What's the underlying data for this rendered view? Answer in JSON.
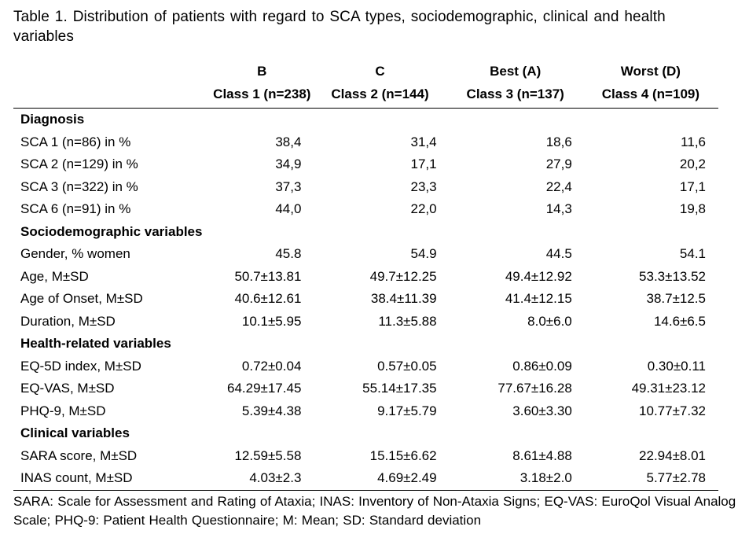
{
  "caption": "Table 1. Distribution of patients with regard to SCA types, sociodemographic, clinical and health variables",
  "columns": [
    {
      "top": "B",
      "bottom": "Class 1 (n=238)"
    },
    {
      "top": "C",
      "bottom": "Class 2 (n=144)"
    },
    {
      "top": "Best (A)",
      "bottom": "Class 3 (n=137)"
    },
    {
      "top": "Worst (D)",
      "bottom": "Class 4 (n=109)"
    }
  ],
  "sections": [
    {
      "title": "Diagnosis",
      "rows": [
        {
          "label": "SCA 1 (n=86) in %",
          "values": [
            "38,4",
            "31,4",
            "18,6",
            "11,6"
          ]
        },
        {
          "label": "SCA 2 (n=129) in %",
          "values": [
            "34,9",
            "17,1",
            "27,9",
            "20,2"
          ]
        },
        {
          "label": "SCA 3 (n=322) in %",
          "values": [
            "37,3",
            "23,3",
            "22,4",
            "17,1"
          ]
        },
        {
          "label": "SCA 6 (n=91) in %",
          "values": [
            "44,0",
            "22,0",
            "14,3",
            "19,8"
          ]
        }
      ]
    },
    {
      "title": "Sociodemographic variables",
      "rows": [
        {
          "label": "Gender, % women",
          "values": [
            "45.8",
            "54.9",
            "44.5",
            "54.1"
          ]
        },
        {
          "label": "Age, M±SD",
          "values": [
            "50.7±13.81",
            "49.7±12.25",
            "49.4±12.92",
            "53.3±13.52"
          ]
        },
        {
          "label": "Age of Onset, M±SD",
          "values": [
            "40.6±12.61",
            "38.4±11.39",
            "41.4±12.15",
            "38.7±12.5"
          ]
        },
        {
          "label": "Duration, M±SD",
          "values": [
            "10.1±5.95",
            "11.3±5.88",
            "8.0±6.0",
            "14.6±6.5"
          ]
        }
      ]
    },
    {
      "title": "Health-related variables",
      "rows": [
        {
          "label": "EQ-5D index, M±SD",
          "values": [
            "0.72±0.04",
            "0.57±0.05",
            "0.86±0.09",
            "0.30±0.11"
          ]
        },
        {
          "label": "EQ-VAS, M±SD",
          "values": [
            "64.29±17.45",
            "55.14±17.35",
            "77.67±16.28",
            "49.31±23.12"
          ]
        },
        {
          "label": "PHQ-9, M±SD",
          "values": [
            "5.39±4.38",
            "9.17±5.79",
            "3.60±3.30",
            "10.77±7.32"
          ]
        }
      ]
    },
    {
      "title": "Clinical variables",
      "rows": [
        {
          "label": "SARA score, M±SD",
          "values": [
            "12.59±5.58",
            "15.15±6.62",
            "8.61±4.88",
            "22.94±8.01"
          ]
        },
        {
          "label": "INAS count, M±SD",
          "values": [
            "4.03±2.3",
            "4.69±2.49",
            "3.18±2.0",
            "5.77±2.78"
          ]
        }
      ]
    }
  ],
  "footnote": "SARA: Scale for Assessment and Rating of Ataxia; INAS: Inventory of Non-Ataxia Signs; EQ-VAS: EuroQol Visual Analog Scale; PHQ-9: Patient Health Questionnaire; M: Mean; SD: Standard deviation"
}
